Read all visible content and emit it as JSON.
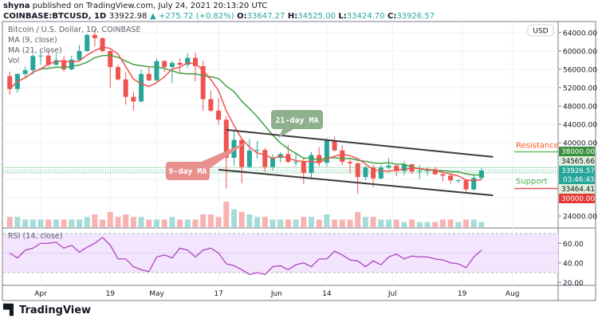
{
  "header": {
    "author": "shyna",
    "published_text": "published on TradingView.com, July 24, 2021 20:13:20 UTC",
    "symbol": "COINBASE:BTCUSD, 1D",
    "last": "33922.98",
    "change": "+275.72 (+0.82%)",
    "open_label": "O:",
    "open": "33647.27",
    "high_label": "H:",
    "high": "34525.00",
    "low_label": "L:",
    "low": "33424.70",
    "close_label": "C:",
    "close": "33926.57"
  },
  "legend": {
    "title": "Bitcoin / U.S. Dollar, 1D, COINBASE",
    "ma9": "MA (9, close)",
    "ma21": "MA (21, close)",
    "vol": "Vol",
    "rsi": "RSI (14, close)"
  },
  "currency_button": "USD",
  "annotations": {
    "ma21_label": "21-day MA",
    "ma9_label": "9-day MA",
    "resistance": "Resistance",
    "support": "Support"
  },
  "price_labels": {
    "resistance": "38000.00",
    "upper": "34565.66",
    "current": "33926.57",
    "countdown": "03:46:43",
    "lower": "33464.41",
    "support": "30000.00"
  },
  "footer": {
    "brand": "TradingView"
  },
  "colors": {
    "up": "#26a69a",
    "down": "#ef5350",
    "ma9": "#ef5350",
    "ma21": "#43a047",
    "rsi": "#ab47bc",
    "rsi_band": "#f3e5fd",
    "resistance": "#388e3c",
    "support": "#e53935"
  },
  "chart_data": {
    "type": "candlestick",
    "ylim": [
      22000,
      66000
    ],
    "y_ticks": [
      "64000.00",
      "60000.00",
      "56000.00",
      "52000.00",
      "48000.00",
      "44000.00",
      "40000.00",
      "24000.00"
    ],
    "x_ticks": [
      "Apr",
      "19",
      "May",
      "17",
      "Jun",
      "14",
      "Jul",
      "19",
      "Aug"
    ],
    "x_tick_dates": [
      "2021-04-01",
      "2021-04-19",
      "2021-05-01",
      "2021-05-17",
      "2021-06-01",
      "2021-06-14",
      "2021-07-01",
      "2021-07-19",
      "2021-08-01"
    ],
    "start_date": "2021-03-23",
    "bar_days": 2,
    "ohlc": [
      [
        54500,
        55500,
        50500,
        51700
      ],
      [
        51700,
        55100,
        50900,
        55000
      ],
      [
        55000,
        56600,
        54000,
        55800
      ],
      [
        55800,
        59400,
        54900,
        58900
      ],
      [
        58900,
        59800,
        57000,
        59000
      ],
      [
        59000,
        60100,
        56600,
        57000
      ],
      [
        57000,
        59500,
        56800,
        58000
      ],
      [
        58000,
        58900,
        55500,
        56000
      ],
      [
        56000,
        59000,
        55800,
        58100
      ],
      [
        58100,
        61300,
        57900,
        60000
      ],
      [
        60000,
        63800,
        59800,
        63500
      ],
      [
        63500,
        64800,
        61000,
        62800
      ],
      [
        62800,
        63000,
        59600,
        60000
      ],
      [
        60000,
        60200,
        52000,
        56500
      ],
      [
        56500,
        57000,
        53500,
        53800
      ],
      [
        53800,
        55400,
        48300,
        50000
      ],
      [
        50000,
        51200,
        47000,
        49000
      ],
      [
        49000,
        55900,
        48800,
        55000
      ],
      [
        55000,
        56400,
        53400,
        53600
      ],
      [
        53600,
        58400,
        53300,
        57800
      ],
      [
        57800,
        58000,
        55400,
        56500
      ],
      [
        56500,
        57900,
        53000,
        57400
      ],
      [
        57400,
        58400,
        55300,
        57000
      ],
      [
        57000,
        59500,
        56300,
        58500
      ],
      [
        58500,
        59600,
        53400,
        56700
      ],
      [
        56700,
        57900,
        46900,
        49500
      ],
      [
        49500,
        51400,
        46600,
        47000
      ],
      [
        47000,
        49800,
        43900,
        45000
      ],
      [
        45000,
        45800,
        30000,
        36700
      ],
      [
        36700,
        42500,
        35000,
        40600
      ],
      [
        40600,
        40800,
        31200,
        34700
      ],
      [
        34700,
        40800,
        34500,
        38300
      ],
      [
        38300,
        40400,
        36500,
        38400
      ],
      [
        38400,
        38900,
        33600,
        34700
      ],
      [
        34700,
        37500,
        34000,
        36700
      ],
      [
        36700,
        37900,
        35700,
        37500
      ],
      [
        37500,
        39500,
        35600,
        35800
      ],
      [
        35800,
        37900,
        34800,
        35800
      ],
      [
        35800,
        36800,
        31000,
        33400
      ],
      [
        33400,
        38000,
        32400,
        37300
      ],
      [
        37300,
        39000,
        34800,
        35600
      ],
      [
        35600,
        41000,
        34800,
        40500
      ],
      [
        40500,
        41300,
        38100,
        38300
      ],
      [
        38300,
        39500,
        35100,
        35800
      ],
      [
        35800,
        36400,
        33300,
        35500
      ],
      [
        35500,
        35700,
        28800,
        32500
      ],
      [
        32500,
        35000,
        31800,
        34600
      ],
      [
        34600,
        35200,
        30200,
        32200
      ],
      [
        32200,
        35100,
        32000,
        34600
      ],
      [
        34600,
        36600,
        34200,
        35000
      ],
      [
        35000,
        35000,
        32700,
        33800
      ],
      [
        33800,
        35900,
        32900,
        35300
      ],
      [
        35300,
        35300,
        33200,
        33700
      ],
      [
        33700,
        35100,
        32100,
        33800
      ],
      [
        33800,
        34600,
        32800,
        34200
      ],
      [
        34200,
        34700,
        33000,
        33100
      ],
      [
        33100,
        33300,
        31600,
        32800
      ],
      [
        32800,
        33200,
        31100,
        31800
      ],
      [
        31800,
        32000,
        31200,
        31800
      ],
      [
        31800,
        31900,
        29300,
        29800
      ],
      [
        29800,
        32900,
        29500,
        32300
      ],
      [
        32300,
        34500,
        31800,
        33926.57
      ]
    ],
    "volume": [
      4,
      4,
      3,
      3,
      3,
      3,
      3,
      3,
      3,
      3,
      4,
      5,
      3,
      6,
      4,
      5,
      4,
      4,
      3,
      3,
      3,
      4,
      3,
      3,
      3,
      5,
      5,
      4,
      10,
      7,
      6,
      5,
      4,
      4,
      3,
      3,
      3,
      3,
      4,
      4,
      3,
      5,
      3,
      3,
      3,
      6,
      4,
      4,
      3,
      3,
      3,
      2,
      3,
      2,
      2,
      2,
      3,
      3,
      2,
      3,
      3,
      2
    ],
    "ma_periods": [
      9,
      21
    ],
    "rsi": {
      "ylim": [
        15,
        75
      ],
      "band": [
        30,
        70
      ],
      "ticks": [
        "60.00",
        "40.00",
        "20.00"
      ],
      "values": [
        50,
        45,
        53,
        55,
        60,
        60,
        61,
        55,
        58,
        51,
        56,
        60,
        66,
        58,
        44,
        44,
        36,
        33,
        31,
        46,
        48,
        45,
        55,
        53,
        46,
        53,
        55,
        50,
        39,
        37,
        33,
        28,
        30,
        28,
        36,
        37,
        33,
        38,
        40,
        36,
        44,
        44,
        52,
        48,
        43,
        42,
        36,
        42,
        38,
        46,
        49,
        44,
        47,
        46,
        46,
        44,
        43,
        40,
        39,
        35,
        46,
        53
      ]
    },
    "channel": {
      "upper": [
        [
          "2021-05-19",
          42800
        ],
        [
          "2021-07-27",
          36900
        ]
      ],
      "lower": [
        [
          "2021-05-17",
          34100
        ],
        [
          "2021-07-27",
          28500
        ]
      ]
    },
    "levels": {
      "resistance": 38000,
      "support": 30000,
      "upper_dotted": 34565.66,
      "lower_dotted": 33464.41,
      "current": 33926.57
    }
  }
}
